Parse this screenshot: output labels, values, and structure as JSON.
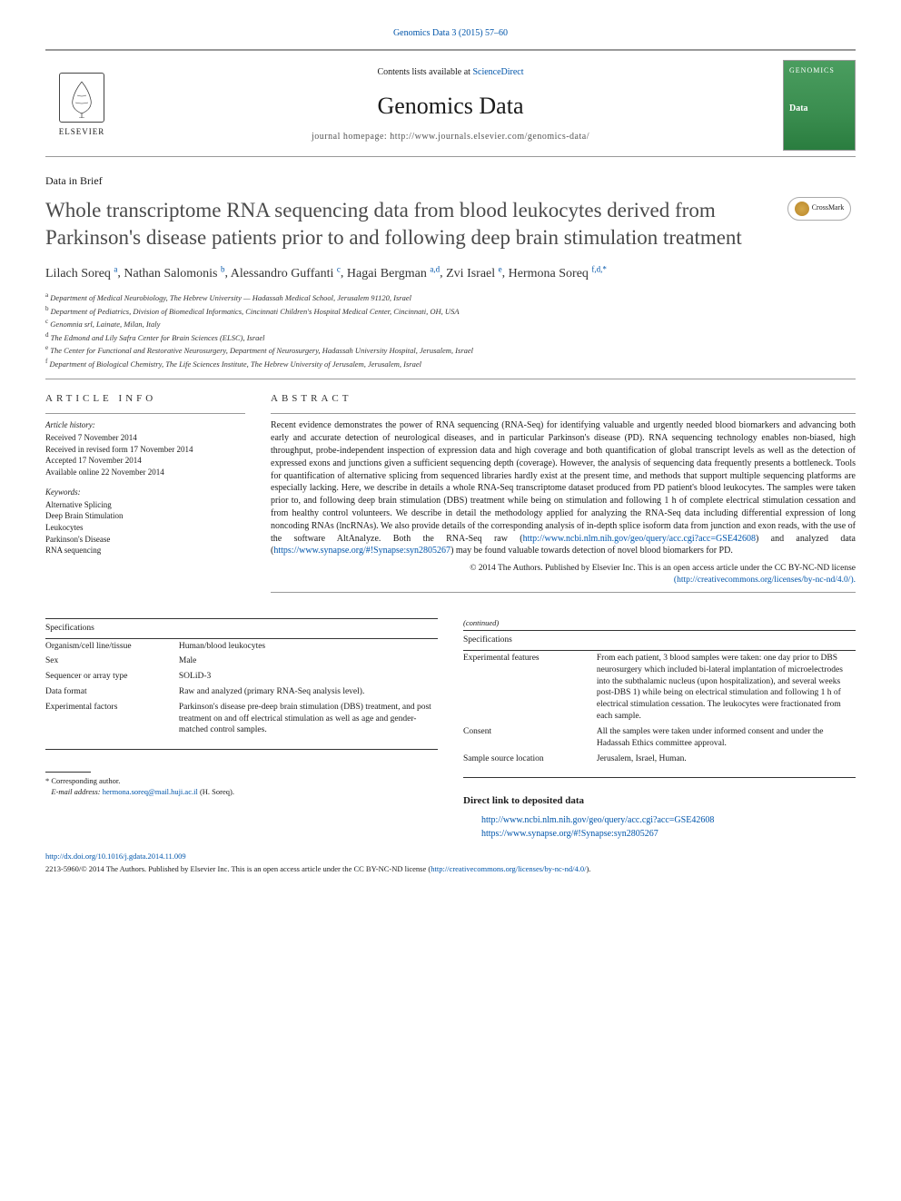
{
  "top_link": {
    "text": "Genomics Data 3 (2015) 57–60",
    "color": "#0055aa"
  },
  "header": {
    "contents_prefix": "Contents lists available at ",
    "contents_link": "ScienceDirect",
    "journal_title": "Genomics Data",
    "journal_home_prefix": "journal homepage: ",
    "journal_home_url": "http://www.journals.elsevier.com/genomics-data/",
    "elsevier_label": "ELSEVIER",
    "cover_label": "GENOMICS",
    "cover_title": "Data"
  },
  "article_type": "Data in Brief",
  "title": "Whole transcriptome RNA sequencing data from blood leukocytes derived from Parkinson's disease patients prior to and following deep brain stimulation treatment",
  "crossmark_label": "CrossMark",
  "authors": [
    {
      "name": "Lilach Soreq",
      "aff": "a"
    },
    {
      "name": "Nathan Salomonis",
      "aff": "b"
    },
    {
      "name": "Alessandro Guffanti",
      "aff": "c"
    },
    {
      "name": "Hagai Bergman",
      "aff": "a,d"
    },
    {
      "name": "Zvi Israel",
      "aff": "e"
    },
    {
      "name": "Hermona Soreq",
      "aff": "f,d,*"
    }
  ],
  "affiliations": [
    {
      "key": "a",
      "text": "Department of Medical Neurobiology, The Hebrew University — Hadassah Medical School, Jerusalem 91120, Israel"
    },
    {
      "key": "b",
      "text": "Department of Pediatrics, Division of Biomedical Informatics, Cincinnati Children's Hospital Medical Center, Cincinnati, OH, USA"
    },
    {
      "key": "c",
      "text": "Genomnia srl, Lainate, Milan, Italy"
    },
    {
      "key": "d",
      "text": "The Edmond and Lily Safra Center for Brain Sciences (ELSC), Israel"
    },
    {
      "key": "e",
      "text": "The Center for Functional and Restorative Neurosurgery, Department of Neurosurgery, Hadassah University Hospital, Jerusalem, Israel"
    },
    {
      "key": "f",
      "text": "Department of Biological Chemistry, The Life Sciences Institute, The Hebrew University of Jerusalem, Jerusalem, Israel"
    }
  ],
  "article_info": {
    "heading": "ARTICLE INFO",
    "history_head": "Article history:",
    "history": [
      "Received 7 November 2014",
      "Received in revised form 17 November 2014",
      "Accepted 17 November 2014",
      "Available online 22 November 2014"
    ],
    "keywords_head": "Keywords:",
    "keywords": [
      "Alternative Splicing",
      "Deep Brain Stimulation",
      "Leukocytes",
      "Parkinson's Disease",
      "RNA sequencing"
    ]
  },
  "abstract": {
    "heading": "ABSTRACT",
    "body_pre": "Recent evidence demonstrates the power of RNA sequencing (RNA-Seq) for identifying valuable and urgently needed blood biomarkers and advancing both early and accurate detection of neurological diseases, and in particular Parkinson's disease (PD). RNA sequencing technology enables non-biased, high throughput, probe-independent inspection of expression data and high coverage and both quantification of global transcript levels as well as the detection of expressed exons and junctions given a sufficient sequencing depth (coverage). However, the analysis of sequencing data frequently presents a bottleneck. Tools for quantification of alternative splicing from sequenced libraries hardly exist at the present time, and methods that support multiple sequencing platforms are especially lacking. Here, we describe in details a whole RNA-Seq transcriptome dataset produced from PD patient's blood leukocytes. The samples were taken prior to, and following deep brain stimulation (DBS) treatment while being on stimulation and following 1 h of complete electrical stimulation cessation and from healthy control volunteers. We describe in detail the methodology applied for analyzing the RNA-Seq data including differential expression of long noncoding RNAs (lncRNAs). We also provide details of the corresponding analysis of in-depth splice isoform data from junction and exon reads, with the use of the software AltAnalyze. Both the RNA-Seq raw (",
    "link1": "http://www.ncbi.nlm.nih.gov/geo/query/acc.cgi?acc=GSE42608",
    "body_mid": ") and analyzed data (",
    "link2": "https://www.synapse.org/#!Synapse:syn2805267",
    "body_post": ") may be found valuable towards detection of novel blood biomarkers for PD.",
    "copyright": "© 2014 The Authors. Published by Elsevier Inc. This is an open access article under the CC BY-NC-ND license",
    "license_link": "(http://creativecommons.org/licenses/by-nc-nd/4.0/)."
  },
  "specs_left": {
    "header": "Specifications",
    "rows": [
      {
        "k": "Organism/cell line/tissue",
        "v": "Human/blood leukocytes"
      },
      {
        "k": "Sex",
        "v": "Male"
      },
      {
        "k": "Sequencer or array type",
        "v": "SOLiD-3"
      },
      {
        "k": "Data format",
        "v": "Raw and analyzed (primary RNA-Seq analysis level)."
      },
      {
        "k": "Experimental factors",
        "v": "Parkinson's disease pre-deep brain stimulation (DBS) treatment, and post treatment on and off electrical stimulation as well as age and gender-matched control samples."
      }
    ]
  },
  "specs_right": {
    "continued": "(continued)",
    "header": "Specifications",
    "rows": [
      {
        "k": "Experimental features",
        "v": "From each patient, 3 blood samples were taken: one day prior to DBS neurosurgery which included bi-lateral implantation of microelectrodes into the subthalamic nucleus (upon hospitalization), and several weeks post-DBS 1) while being on electrical stimulation and following 1 h of electrical stimulation cessation. The leukocytes were fractionated from each sample."
      },
      {
        "k": "Consent",
        "v": "All the samples were taken under informed consent and under the Hadassah Ethics committee approval."
      },
      {
        "k": "Sample source location",
        "v": "Jerusalem, Israel, Human."
      }
    ]
  },
  "data_section": {
    "heading": "Direct link to deposited data",
    "links": [
      "http://www.ncbi.nlm.nih.gov/geo/query/acc.cgi?acc=GSE42608",
      "https://www.synapse.org/#!Synapse:syn2805267"
    ]
  },
  "corresponding": {
    "star": "*",
    "text": "Corresponding author.",
    "email_label": "E-mail address: ",
    "email": "hermona.soreq@mail.huji.ac.il",
    "email_suffix": " (H. Soreq)."
  },
  "footer": {
    "doi": "http://dx.doi.org/10.1016/j.gdata.2014.11.009",
    "license_text": "2213-5960/© 2014 The Authors. Published by Elsevier Inc. This is an open access article under the CC BY-NC-ND license (",
    "license_url": "http://creativecommons.org/licenses/by-nc-nd/4.0/",
    "license_close": ")."
  },
  "colors": {
    "link": "#0055aa",
    "text": "#1a1a1a",
    "title_gray": "#4a4a4a",
    "rule": "#999999",
    "cover_green": "#3a8d4f"
  },
  "typography": {
    "body_fontsize_pt": 8,
    "title_fontsize_pt": 18,
    "journal_title_fontsize_pt": 20,
    "authors_fontsize_pt": 11
  }
}
